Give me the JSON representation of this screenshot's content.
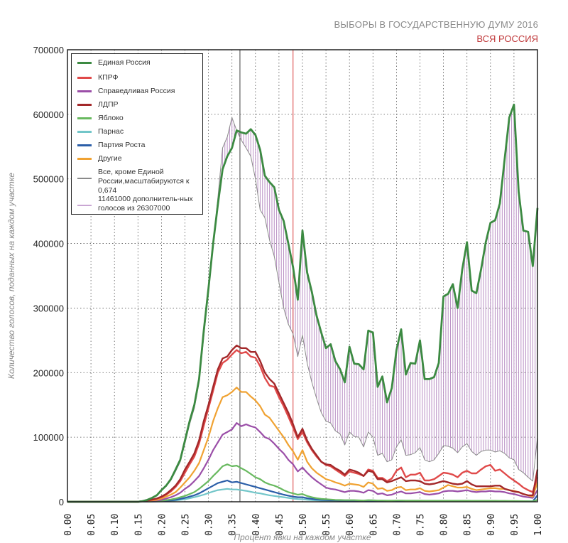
{
  "header": {
    "title": "ВЫБОРЫ В ГОСУДАРСТВЕННУЮ ДУМУ 2016",
    "subtitle": "ВСЯ РОССИЯ"
  },
  "chart_data": {
    "type": "line",
    "xlabel": "Процент явки на каждом участке",
    "ylabel": "Количество голосов, поданных на каждом участке",
    "xlim": [
      0,
      1
    ],
    "ylim": [
      0,
      700000
    ],
    "xticks": [
      "0.00",
      "0.05",
      "0.10",
      "0.15",
      "0.20",
      "0.25",
      "0.30",
      "0.35",
      "0.40",
      "0.45",
      "0.50",
      "0.55",
      "0.60",
      "0.65",
      "0.70",
      "0.75",
      "0.80",
      "0.85",
      "0.90",
      "0.95",
      "1.00"
    ],
    "yticks": [
      "0",
      "100000",
      "200000",
      "300000",
      "400000",
      "500000",
      "600000",
      "700000"
    ],
    "grid": true,
    "legend_position": "top-left",
    "x_start": 0.0,
    "x_step": 0.01,
    "vlines": [
      {
        "x": 0.367,
        "color": "#444444"
      },
      {
        "x": 0.48,
        "color": "#d94040"
      }
    ],
    "hatch_color": "#b990c4",
    "series": [
      {
        "name": "Все, кроме Единой России,масштабируются к 0,674",
        "color": "#8a8a8a",
        "width": 1,
        "values": [
          0,
          0,
          0,
          0,
          0,
          0,
          0,
          0,
          0,
          0,
          0,
          0,
          0,
          0,
          0,
          0,
          1000,
          3000,
          6000,
          10000,
          17000,
          24000,
          33000,
          47000,
          62000,
          90000,
          120000,
          145000,
          185000,
          255000,
          325000,
          400000,
          470000,
          548000,
          565000,
          595000,
          575000,
          560000,
          548000,
          535000,
          500000,
          452000,
          440000,
          405000,
          380000,
          340000,
          300000,
          275000,
          260000,
          225000,
          258000,
          215000,
          185000,
          160000,
          138000,
          125000,
          122000,
          110000,
          105000,
          88000,
          108000,
          101000,
          100000,
          85000,
          108000,
          100000,
          72000,
          75000,
          62000,
          65000,
          85000,
          96000,
          72000,
          73000,
          76000,
          84000,
          65000,
          62000,
          65000,
          75000,
          87000,
          86000,
          83000,
          76000,
          85000,
          90000,
          78000,
          72000,
          78000,
          80000,
          80000,
          77000,
          79000,
          75000,
          68000,
          65000,
          50000,
          45000,
          38000,
          32000,
          100000
        ]
      },
      {
        "name": "Парнас",
        "color": "#72c6c9",
        "width": 2.2,
        "values": [
          0,
          0,
          0,
          0,
          0,
          0,
          0,
          0,
          0,
          0,
          0,
          0,
          0,
          0,
          0,
          0,
          100,
          150,
          250,
          400,
          600,
          900,
          1300,
          2000,
          3000,
          4000,
          5500,
          7000,
          9000,
          11000,
          13500,
          16000,
          18000,
          19000,
          20000,
          19000,
          19000,
          18000,
          17000,
          15500,
          14000,
          13000,
          11500,
          10000,
          9000,
          8000,
          7000,
          6000,
          5000,
          4200,
          4000,
          3200,
          2600,
          2200,
          1800,
          1500,
          1300,
          1200,
          1100,
          1000,
          1000,
          1000,
          900,
          900,
          900,
          900,
          700,
          700,
          700,
          700,
          700,
          700,
          700,
          700,
          700,
          700,
          700,
          700,
          700,
          700,
          700,
          700,
          700,
          700,
          700,
          700,
          700,
          700,
          700,
          700,
          700,
          700,
          700,
          700,
          700,
          600,
          600,
          500,
          500,
          500,
          3000
        ]
      },
      {
        "name": "Партия Роста",
        "color": "#2b5ea8",
        "width": 2.2,
        "values": [
          0,
          0,
          0,
          0,
          0,
          0,
          0,
          0,
          0,
          0,
          0,
          0,
          0,
          0,
          0,
          0,
          100,
          200,
          400,
          600,
          1000,
          1500,
          2000,
          3000,
          4500,
          6000,
          8000,
          10000,
          13000,
          17000,
          21000,
          25000,
          29000,
          31000,
          33000,
          30000,
          31000,
          29000,
          27000,
          25000,
          23000,
          21000,
          19000,
          17000,
          15000,
          13000,
          11000,
          9500,
          8000,
          7000,
          7000,
          5500,
          4500,
          3500,
          3000,
          2500,
          2200,
          2000,
          1800,
          1600,
          1700,
          1600,
          1500,
          1400,
          1500,
          1400,
          1200,
          1200,
          1100,
          1100,
          1200,
          1200,
          1100,
          1100,
          1100,
          1100,
          1000,
          1000,
          1000,
          1000,
          1000,
          1000,
          1000,
          1000,
          1000,
          1000,
          1000,
          1000,
          1000,
          1000,
          1000,
          1000,
          1000,
          1000,
          900,
          900,
          800,
          800,
          700,
          700,
          10000
        ]
      },
      {
        "name": "Яблоко",
        "color": "#68b95f",
        "width": 2.2,
        "values": [
          0,
          0,
          0,
          0,
          0,
          0,
          0,
          0,
          0,
          0,
          0,
          0,
          0,
          0,
          0,
          0,
          200,
          400,
          600,
          1000,
          1500,
          2500,
          3500,
          5000,
          7000,
          9000,
          12000,
          15000,
          20000,
          26000,
          32000,
          40000,
          47000,
          55000,
          58000,
          55000,
          56000,
          52000,
          48000,
          43000,
          38000,
          35000,
          30000,
          27000,
          25000,
          22000,
          18000,
          15000,
          13000,
          11000,
          12000,
          9000,
          7000,
          5500,
          4500,
          4000,
          3500,
          3000,
          2800,
          2500,
          2500,
          2500,
          2200,
          2000,
          2500,
          2300,
          2000,
          2000,
          1800,
          1800,
          2000,
          2000,
          1800,
          1800,
          1800,
          1800,
          1600,
          1600,
          1600,
          1600,
          1700,
          1700,
          1700,
          1600,
          1600,
          1600,
          1500,
          1500,
          1500,
          1500,
          1500,
          1500,
          1400,
          1400,
          1300,
          1200,
          1100,
          1000,
          900,
          800,
          3000
        ]
      },
      {
        "name": "Справедливая Россия",
        "color": "#9b4fa8",
        "width": 2.2,
        "values": [
          0,
          0,
          0,
          0,
          0,
          0,
          0,
          0,
          0,
          0,
          0,
          0,
          0,
          0,
          0,
          0,
          300,
          600,
          1000,
          2000,
          3000,
          5000,
          7000,
          10000,
          14000,
          20000,
          25000,
          32000,
          40000,
          52000,
          65000,
          80000,
          92000,
          104000,
          108000,
          112000,
          122000,
          117000,
          120000,
          117000,
          115000,
          108000,
          100000,
          97000,
          90000,
          82000,
          75000,
          65000,
          58000,
          47000,
          53000,
          45000,
          38000,
          32000,
          27000,
          22000,
          20000,
          19000,
          17000,
          15000,
          17000,
          17000,
          16000,
          14000,
          18000,
          17000,
          12000,
          13000,
          10000,
          11000,
          14000,
          16000,
          13000,
          13000,
          14000,
          15000,
          12000,
          11000,
          12000,
          13000,
          16000,
          17000,
          17000,
          16000,
          17000,
          18000,
          16000,
          15000,
          16000,
          16000,
          17000,
          16000,
          16000,
          15000,
          13000,
          12000,
          10000,
          8000,
          7000,
          6000,
          18000
        ]
      },
      {
        "name": "Другие",
        "color": "#f0a232",
        "width": 2.2,
        "values": [
          0,
          0,
          0,
          0,
          0,
          0,
          0,
          0,
          0,
          0,
          0,
          0,
          0,
          0,
          0,
          0,
          500,
          1000,
          2000,
          3000,
          5000,
          8000,
          11000,
          15000,
          22000,
          30000,
          38000,
          48000,
          60000,
          80000,
          100000,
          125000,
          145000,
          162000,
          165000,
          170000,
          177000,
          170000,
          170000,
          163000,
          157000,
          148000,
          135000,
          130000,
          120000,
          110000,
          100000,
          88000,
          78000,
          65000,
          80000,
          62000,
          52000,
          45000,
          40000,
          35000,
          33000,
          30000,
          28000,
          25000,
          28000,
          27000,
          26000,
          23000,
          30000,
          28000,
          20000,
          21000,
          17000,
          18000,
          22000,
          23000,
          18000,
          19000,
          19000,
          21000,
          17000,
          16000,
          17000,
          18000,
          22000,
          26000,
          24000,
          22000,
          22000,
          23000,
          20000,
          18000,
          19000,
          20000,
          21000,
          21000,
          20000,
          20000,
          18000,
          17000,
          15000,
          12000,
          10000,
          8000,
          30000
        ]
      },
      {
        "name": "КПРФ",
        "color": "#e04a4a",
        "width": 2.4,
        "values": [
          0,
          0,
          0,
          0,
          0,
          0,
          0,
          0,
          0,
          0,
          0,
          0,
          0,
          0,
          0,
          0,
          1000,
          2000,
          3000,
          5000,
          7000,
          11000,
          16000,
          23000,
          32000,
          45000,
          58000,
          70000,
          90000,
          118000,
          145000,
          172000,
          200000,
          215000,
          220000,
          228000,
          235000,
          230000,
          232000,
          225000,
          223000,
          210000,
          192000,
          180000,
          178000,
          162000,
          148000,
          132000,
          115000,
          97000,
          108000,
          92000,
          80000,
          70000,
          62000,
          57000,
          55000,
          50000,
          45000,
          40000,
          47000,
          45000,
          43000,
          40000,
          50000,
          48000,
          37000,
          37000,
          32000,
          36000,
          48000,
          53000,
          38000,
          42000,
          42000,
          45000,
          33000,
          33000,
          35000,
          40000,
          45000,
          44000,
          42000,
          38000,
          45000,
          48000,
          44000,
          44000,
          50000,
          55000,
          57000,
          48000,
          50000,
          44000,
          38000,
          33000,
          28000,
          22000,
          18000,
          15000,
          38000
        ]
      },
      {
        "name": "ЛДПР",
        "color": "#a3282a",
        "width": 2.4,
        "values": [
          0,
          0,
          0,
          0,
          0,
          0,
          0,
          0,
          0,
          0,
          0,
          0,
          0,
          0,
          0,
          0,
          1000,
          2000,
          3500,
          5000,
          8000,
          12000,
          18000,
          25000,
          35000,
          50000,
          62000,
          75000,
          95000,
          125000,
          150000,
          178000,
          205000,
          222000,
          225000,
          235000,
          242000,
          238000,
          238000,
          232000,
          232000,
          218000,
          200000,
          190000,
          183000,
          168000,
          153000,
          138000,
          120000,
          100000,
          113000,
          95000,
          82000,
          72000,
          62000,
          58000,
          57000,
          52000,
          48000,
          42000,
          50000,
          48000,
          45000,
          40000,
          48000,
          46000,
          35000,
          35000,
          30000,
          32000,
          35000,
          38000,
          32000,
          33000,
          33000,
          32000,
          28000,
          27000,
          28000,
          30000,
          32000,
          30000,
          28000,
          27000,
          28000,
          32000,
          27000,
          24000,
          24000,
          24000,
          24000,
          25000,
          25000,
          20000,
          18000,
          16000,
          15000,
          12000,
          10000,
          10000,
          50000
        ]
      },
      {
        "name": "Единая Россия",
        "color": "#3c8a42",
        "width": 2.8,
        "values": [
          0,
          0,
          0,
          0,
          0,
          0,
          0,
          0,
          0,
          0,
          0,
          0,
          0,
          0,
          0,
          0,
          1000,
          3000,
          6000,
          10000,
          18000,
          25000,
          35000,
          50000,
          65000,
          95000,
          125000,
          150000,
          190000,
          265000,
          330000,
          400000,
          460000,
          515000,
          535000,
          548000,
          575000,
          572000,
          570000,
          577000,
          568000,
          545000,
          505000,
          495000,
          487000,
          452000,
          435000,
          400000,
          363000,
          313000,
          420000,
          355000,
          325000,
          288000,
          262000,
          238000,
          244000,
          218000,
          205000,
          185000,
          240000,
          214000,
          213000,
          205000,
          265000,
          262000,
          178000,
          194000,
          154000,
          176000,
          235000,
          267000,
          197000,
          215000,
          214000,
          250000,
          190000,
          190000,
          193000,
          215000,
          318000,
          322000,
          337000,
          300000,
          360000,
          402000,
          327000,
          323000,
          360000,
          402000,
          432000,
          436000,
          462000,
          530000,
          595000,
          615000,
          480000,
          420000,
          418000,
          365000,
          455000
        ]
      }
    ],
    "legend": [
      {
        "label": "Единая Россия",
        "color": "#3c8a42"
      },
      {
        "label": "КПРФ",
        "color": "#e04a4a"
      },
      {
        "label": "Справедливая Россия",
        "color": "#9b4fa8"
      },
      {
        "label": "ЛДПР",
        "color": "#a3282a"
      },
      {
        "label": "Яблоко",
        "color": "#68b95f"
      },
      {
        "label": "Парнас",
        "color": "#72c6c9"
      },
      {
        "label": "Партия Роста",
        "color": "#2b5ea8"
      },
      {
        "label": "Другие",
        "color": "#f0a232"
      },
      {
        "label": "Все, кроме Единой России,масштабируются к 0,674",
        "color": "#8a8a8a"
      },
      {
        "label": "11461000 дополнитель-ных голосов из 26307000",
        "color": "#c9a6d3"
      }
    ]
  }
}
